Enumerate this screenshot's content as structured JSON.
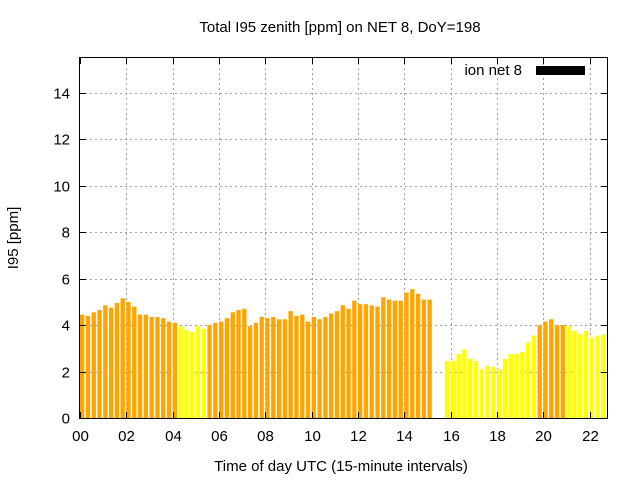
{
  "chart_data": {
    "type": "bar",
    "title": "Total I95 zenith [ppm] on NET 8, DoY=198",
    "xlabel": "Time of day UTC (15-minute intervals)",
    "ylabel": "I95 [ppm]",
    "xlim": [
      0,
      22.75
    ],
    "ylim": [
      0,
      15.5
    ],
    "x_ticks": [
      "00",
      "02",
      "04",
      "06",
      "08",
      "10",
      "12",
      "14",
      "16",
      "18",
      "20",
      "22"
    ],
    "y_ticks": [
      "0",
      "2",
      "4",
      "6",
      "8",
      "10",
      "12",
      "14"
    ],
    "grid": true,
    "legend": {
      "label": "ion net 8",
      "color": "#000000",
      "placement": "top-right"
    },
    "colors": {
      "orange": "#ffa500",
      "yellow": "#ffff00"
    },
    "interval_hours": 0.25,
    "bars": [
      {
        "x": 0.0,
        "v": 4.45,
        "c": "orange"
      },
      {
        "x": 0.25,
        "v": 4.4,
        "c": "orange"
      },
      {
        "x": 0.5,
        "v": 4.55,
        "c": "orange"
      },
      {
        "x": 0.75,
        "v": 4.65,
        "c": "orange"
      },
      {
        "x": 1.0,
        "v": 4.85,
        "c": "orange"
      },
      {
        "x": 1.25,
        "v": 4.75,
        "c": "orange"
      },
      {
        "x": 1.5,
        "v": 4.95,
        "c": "orange"
      },
      {
        "x": 1.75,
        "v": 5.15,
        "c": "orange"
      },
      {
        "x": 2.0,
        "v": 5.0,
        "c": "orange"
      },
      {
        "x": 2.25,
        "v": 4.8,
        "c": "orange"
      },
      {
        "x": 2.5,
        "v": 4.45,
        "c": "orange"
      },
      {
        "x": 2.75,
        "v": 4.45,
        "c": "orange"
      },
      {
        "x": 3.0,
        "v": 4.35,
        "c": "orange"
      },
      {
        "x": 3.25,
        "v": 4.35,
        "c": "orange"
      },
      {
        "x": 3.5,
        "v": 4.3,
        "c": "orange"
      },
      {
        "x": 3.75,
        "v": 4.15,
        "c": "orange"
      },
      {
        "x": 4.0,
        "v": 4.1,
        "c": "orange"
      },
      {
        "x": 4.25,
        "v": 3.95,
        "c": "yellow"
      },
      {
        "x": 4.5,
        "v": 3.8,
        "c": "yellow"
      },
      {
        "x": 4.75,
        "v": 3.7,
        "c": "yellow"
      },
      {
        "x": 5.0,
        "v": 3.95,
        "c": "yellow"
      },
      {
        "x": 5.25,
        "v": 3.85,
        "c": "yellow"
      },
      {
        "x": 5.5,
        "v": 4.0,
        "c": "orange"
      },
      {
        "x": 5.75,
        "v": 4.1,
        "c": "orange"
      },
      {
        "x": 6.0,
        "v": 4.15,
        "c": "orange"
      },
      {
        "x": 6.25,
        "v": 4.3,
        "c": "orange"
      },
      {
        "x": 6.5,
        "v": 4.55,
        "c": "orange"
      },
      {
        "x": 6.75,
        "v": 4.65,
        "c": "orange"
      },
      {
        "x": 7.0,
        "v": 4.7,
        "c": "orange"
      },
      {
        "x": 7.25,
        "v": 3.95,
        "c": "orange"
      },
      {
        "x": 7.5,
        "v": 4.1,
        "c": "orange"
      },
      {
        "x": 7.75,
        "v": 4.35,
        "c": "orange"
      },
      {
        "x": 8.0,
        "v": 4.3,
        "c": "orange"
      },
      {
        "x": 8.25,
        "v": 4.35,
        "c": "orange"
      },
      {
        "x": 8.5,
        "v": 4.25,
        "c": "orange"
      },
      {
        "x": 8.75,
        "v": 4.25,
        "c": "orange"
      },
      {
        "x": 9.0,
        "v": 4.6,
        "c": "orange"
      },
      {
        "x": 9.25,
        "v": 4.4,
        "c": "orange"
      },
      {
        "x": 9.5,
        "v": 4.45,
        "c": "orange"
      },
      {
        "x": 9.75,
        "v": 4.15,
        "c": "orange"
      },
      {
        "x": 10.0,
        "v": 4.35,
        "c": "orange"
      },
      {
        "x": 10.25,
        "v": 4.25,
        "c": "orange"
      },
      {
        "x": 10.5,
        "v": 4.35,
        "c": "orange"
      },
      {
        "x": 10.75,
        "v": 4.5,
        "c": "orange"
      },
      {
        "x": 11.0,
        "v": 4.6,
        "c": "orange"
      },
      {
        "x": 11.25,
        "v": 4.85,
        "c": "orange"
      },
      {
        "x": 11.5,
        "v": 4.7,
        "c": "orange"
      },
      {
        "x": 11.75,
        "v": 5.05,
        "c": "orange"
      },
      {
        "x": 12.0,
        "v": 4.9,
        "c": "orange"
      },
      {
        "x": 12.25,
        "v": 4.9,
        "c": "orange"
      },
      {
        "x": 12.5,
        "v": 4.85,
        "c": "orange"
      },
      {
        "x": 12.75,
        "v": 4.8,
        "c": "orange"
      },
      {
        "x": 13.0,
        "v": 5.2,
        "c": "orange"
      },
      {
        "x": 13.25,
        "v": 5.1,
        "c": "orange"
      },
      {
        "x": 13.5,
        "v": 5.05,
        "c": "orange"
      },
      {
        "x": 13.75,
        "v": 5.05,
        "c": "orange"
      },
      {
        "x": 14.0,
        "v": 5.4,
        "c": "orange"
      },
      {
        "x": 14.25,
        "v": 5.55,
        "c": "orange"
      },
      {
        "x": 14.5,
        "v": 5.35,
        "c": "orange"
      },
      {
        "x": 14.75,
        "v": 5.1,
        "c": "orange"
      },
      {
        "x": 15.0,
        "v": 5.1,
        "c": "orange"
      },
      {
        "x": 15.75,
        "v": 2.45,
        "c": "yellow"
      },
      {
        "x": 16.0,
        "v": 2.45,
        "c": "yellow"
      },
      {
        "x": 16.25,
        "v": 2.75,
        "c": "yellow"
      },
      {
        "x": 16.5,
        "v": 2.95,
        "c": "yellow"
      },
      {
        "x": 16.75,
        "v": 2.55,
        "c": "yellow"
      },
      {
        "x": 17.0,
        "v": 2.45,
        "c": "yellow"
      },
      {
        "x": 17.25,
        "v": 2.1,
        "c": "yellow"
      },
      {
        "x": 17.5,
        "v": 2.25,
        "c": "yellow"
      },
      {
        "x": 17.75,
        "v": 2.2,
        "c": "yellow"
      },
      {
        "x": 18.0,
        "v": 2.1,
        "c": "yellow"
      },
      {
        "x": 18.25,
        "v": 2.55,
        "c": "yellow"
      },
      {
        "x": 18.5,
        "v": 2.75,
        "c": "yellow"
      },
      {
        "x": 18.75,
        "v": 2.75,
        "c": "yellow"
      },
      {
        "x": 19.0,
        "v": 2.85,
        "c": "yellow"
      },
      {
        "x": 19.25,
        "v": 3.25,
        "c": "yellow"
      },
      {
        "x": 19.5,
        "v": 3.55,
        "c": "yellow"
      },
      {
        "x": 19.75,
        "v": 4.0,
        "c": "orange"
      },
      {
        "x": 20.0,
        "v": 4.15,
        "c": "orange"
      },
      {
        "x": 20.25,
        "v": 4.25,
        "c": "orange"
      },
      {
        "x": 20.5,
        "v": 4.0,
        "c": "orange"
      },
      {
        "x": 20.75,
        "v": 4.0,
        "c": "orange"
      },
      {
        "x": 21.0,
        "v": 3.95,
        "c": "yellow"
      },
      {
        "x": 21.25,
        "v": 3.75,
        "c": "yellow"
      },
      {
        "x": 21.5,
        "v": 3.6,
        "c": "yellow"
      },
      {
        "x": 21.75,
        "v": 3.75,
        "c": "yellow"
      },
      {
        "x": 22.0,
        "v": 3.45,
        "c": "yellow"
      },
      {
        "x": 22.25,
        "v": 3.55,
        "c": "yellow"
      },
      {
        "x": 22.5,
        "v": 3.6,
        "c": "yellow"
      }
    ]
  }
}
